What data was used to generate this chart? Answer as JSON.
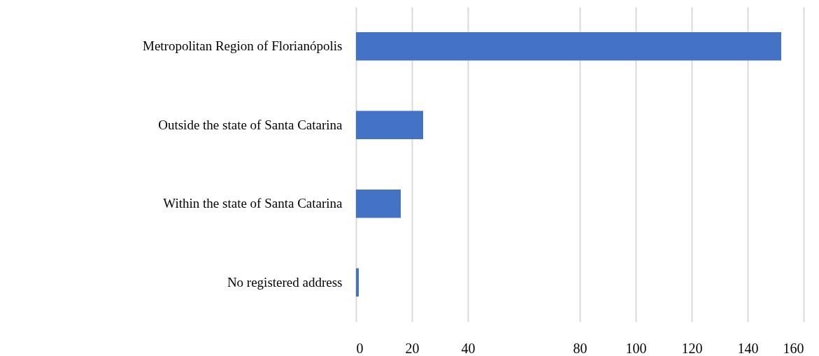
{
  "chart_data": {
    "type": "bar",
    "orientation": "horizontal",
    "categories": [
      "Metropolitan Region of Florianópolis",
      "Outside the state of Santa Catarina",
      "Within the state of Santa Catarina",
      "No registered address"
    ],
    "values": [
      152,
      24,
      16,
      1
    ],
    "color": "#4472c4",
    "xlim": [
      0,
      160
    ],
    "xticks": [
      0,
      20,
      40,
      80,
      100,
      120,
      140,
      160
    ],
    "grid": "x"
  }
}
